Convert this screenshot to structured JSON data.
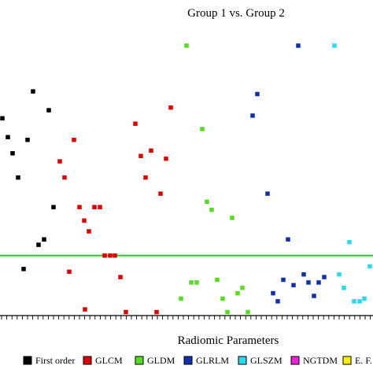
{
  "chart_data": {
    "type": "scatter",
    "title": "Group 1 vs. Group 2",
    "xlabel": "Radiomic Parameters",
    "ylabel": "",
    "xlim": [
      0,
      474
    ],
    "ylim": [
      0,
      100
    ],
    "threshold": {
      "y": 22,
      "color": "#22dd22"
    },
    "legend": {
      "placement": "bottom",
      "entries": [
        {
          "label": "First order",
          "color": "#000000"
        },
        {
          "label": "GLCM",
          "color": "#e00000"
        },
        {
          "label": "GLDM",
          "color": "#55dd22"
        },
        {
          "label": "GLRLM",
          "color": "#1030b0"
        },
        {
          "label": "GLSZM",
          "color": "#22ddee"
        },
        {
          "label": "NGTDM",
          "color": "#ee22dd"
        },
        {
          "label": "E. F.",
          "color": "#ffee00"
        }
      ]
    },
    "series": [
      {
        "name": "First order",
        "color": "#000000",
        "points": [
          [
            3,
            73
          ],
          [
            10,
            66
          ],
          [
            16,
            60
          ],
          [
            23,
            51
          ],
          [
            35,
            65
          ],
          [
            42,
            83
          ],
          [
            62,
            76
          ],
          [
            68,
            40
          ],
          [
            49,
            26
          ],
          [
            56,
            28
          ],
          [
            30,
            17
          ]
        ]
      },
      {
        "name": "GLCM",
        "color": "#e00000",
        "points": [
          [
            94,
            65
          ],
          [
            76,
            57
          ],
          [
            82,
            51
          ],
          [
            101,
            40
          ],
          [
            107,
            35
          ],
          [
            120,
            40
          ],
          [
            127,
            40
          ],
          [
            113,
            31
          ],
          [
            88,
            16
          ],
          [
            133,
            22
          ],
          [
            140,
            22
          ],
          [
            146,
            22
          ],
          [
            153,
            14
          ],
          [
            160,
            1
          ],
          [
            108,
            2
          ],
          [
            199,
            1
          ],
          [
            172,
            71
          ],
          [
            179,
            59
          ],
          [
            192,
            61
          ],
          [
            185,
            51
          ],
          [
            204,
            45
          ],
          [
            211,
            58
          ],
          [
            217,
            77
          ]
        ]
      },
      {
        "name": "GLDM",
        "color": "#55dd22",
        "points": [
          [
            237,
            100
          ],
          [
            257,
            69
          ],
          [
            263,
            42
          ],
          [
            269,
            39
          ],
          [
            295,
            36
          ],
          [
            243,
            12
          ],
          [
            250,
            12
          ],
          [
            276,
            13
          ],
          [
            308,
            10
          ],
          [
            230,
            6
          ],
          [
            283,
            6
          ],
          [
            302,
            8
          ],
          [
            289,
            1
          ],
          [
            315,
            1
          ]
        ]
      },
      {
        "name": "GLRLM",
        "color": "#1030b0",
        "points": [
          [
            379,
            100
          ],
          [
            327,
            82
          ],
          [
            321,
            74
          ],
          [
            340,
            45
          ],
          [
            366,
            28
          ],
          [
            360,
            13
          ],
          [
            347,
            8
          ],
          [
            353,
            5
          ],
          [
            373,
            11
          ],
          [
            386,
            15
          ],
          [
            392,
            12
          ],
          [
            399,
            7
          ],
          [
            405,
            12
          ],
          [
            412,
            14
          ]
        ]
      },
      {
        "name": "GLSZM",
        "color": "#22ddee",
        "points": [
          [
            425,
            100
          ],
          [
            444,
            27
          ],
          [
            431,
            15
          ],
          [
            437,
            10
          ],
          [
            450,
            5
          ],
          [
            457,
            5
          ],
          [
            463,
            6
          ],
          [
            470,
            18
          ]
        ]
      }
    ]
  }
}
